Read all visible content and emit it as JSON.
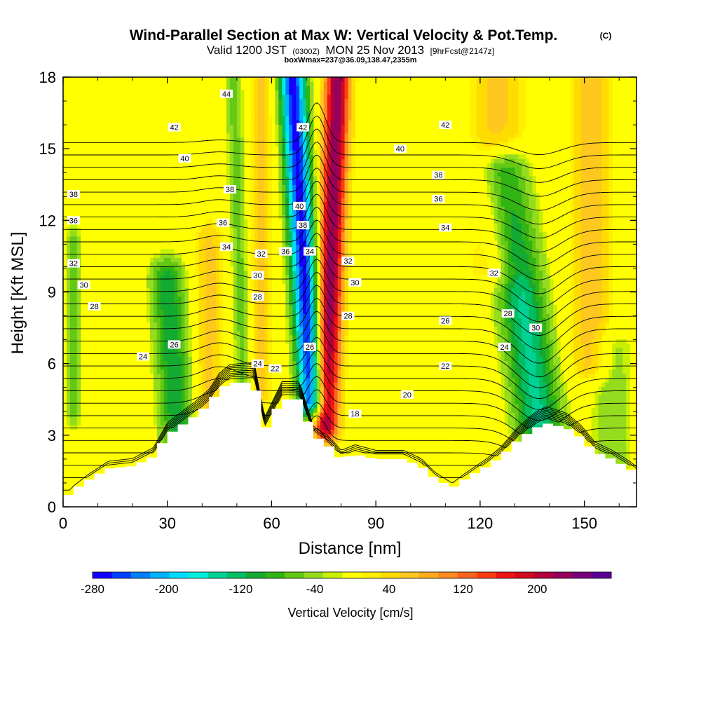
{
  "header": {
    "title": "Wind-Parallel Section at Max W: Vertical Velocity & Pot.Temp.",
    "copyright": "(C)",
    "valid_prefix": "Valid 1200 JST",
    "valid_utc": "(0300Z)",
    "valid_date": "MON 25 Nov 2013",
    "forecast": "[9hrFcst@2147z]",
    "box_info": "boxWmax=237@36.09,138.47,2355m"
  },
  "chart_data": {
    "type": "heatmap",
    "xlabel": "Distance [nm]",
    "ylabel": "Height [Kft MSL]",
    "xlim": [
      0,
      165
    ],
    "ylim": [
      0,
      18
    ],
    "x_ticks": [
      "0",
      "30",
      "60",
      "90",
      "120",
      "150"
    ],
    "y_ticks": [
      "0",
      "3",
      "6",
      "9",
      "12",
      "15",
      "18"
    ],
    "colorbar": {
      "label": "Vertical Velocity [cm/s]",
      "range": [
        -280,
        280
      ],
      "tick_values": [
        -280,
        -200,
        -120,
        -40,
        40,
        120,
        200
      ],
      "tick_labels": [
        "-280",
        "-200",
        "-120",
        "-40",
        "40",
        "120",
        "200"
      ],
      "colors": [
        "#1400ff",
        "#0040ff",
        "#0080ff",
        "#00b4ff",
        "#00dcff",
        "#00f0dc",
        "#00d296",
        "#00be64",
        "#14aa32",
        "#32b414",
        "#64c814",
        "#96dc1e",
        "#c8f000",
        "#ffff00",
        "#ffef00",
        "#ffdc00",
        "#ffc81e",
        "#ffaa1e",
        "#ff8c1e",
        "#ff641e",
        "#ff3c14",
        "#f01414",
        "#d20a1e",
        "#b4003c",
        "#96005a",
        "#78007d",
        "#5a0096"
      ]
    },
    "terrain_kft": [
      [
        0,
        0.3
      ],
      [
        3,
        0.7
      ],
      [
        7,
        1.1
      ],
      [
        13,
        1.6
      ],
      [
        20,
        1.7
      ],
      [
        26,
        2.1
      ],
      [
        30,
        3.0
      ],
      [
        33,
        3.3
      ],
      [
        38,
        3.8
      ],
      [
        42,
        4.3
      ],
      [
        45,
        4.9
      ],
      [
        48,
        5.2
      ],
      [
        55,
        5.2
      ],
      [
        58,
        3.2
      ],
      [
        63,
        4.5
      ],
      [
        68,
        4.5
      ],
      [
        72,
        3.0
      ],
      [
        76,
        2.6
      ],
      [
        80,
        2.0
      ],
      [
        84,
        2.2
      ],
      [
        90,
        2.0
      ],
      [
        98,
        2.0
      ],
      [
        103,
        1.7
      ],
      [
        107,
        1.2
      ],
      [
        112,
        0.8
      ],
      [
        115,
        1.1
      ],
      [
        122,
        1.7
      ],
      [
        126,
        2.1
      ],
      [
        131,
        2.8
      ],
      [
        136,
        3.3
      ],
      [
        139,
        3.5
      ],
      [
        145,
        3.3
      ],
      [
        149,
        2.9
      ],
      [
        153,
        2.3
      ],
      [
        158,
        2.0
      ],
      [
        163,
        1.6
      ],
      [
        165,
        1.4
      ]
    ],
    "velocity_features": [
      {
        "type": "downdraft",
        "x": 71.5,
        "y_range": [
          4.5,
          18
        ],
        "lean_nm": -5.5,
        "half_width_nm": 3.8,
        "peak_cm_s": -270
      },
      {
        "type": "updraft",
        "x": 75.5,
        "y_range": [
          3.5,
          18
        ],
        "lean_nm": 3.5,
        "half_width_nm": 3.6,
        "peak_cm_s": 237
      },
      {
        "type": "downdraft",
        "x": 137,
        "y_range": [
          3.5,
          14
        ],
        "lean_nm": -10,
        "half_width_nm": 7,
        "peak_cm_s": -140
      },
      {
        "type": "downdraft",
        "x": 33,
        "y_range": [
          3.0,
          9.5
        ],
        "lean_nm": -3,
        "half_width_nm": 5,
        "peak_cm_s": -110
      },
      {
        "type": "downdraft",
        "x": 52,
        "y_range": [
          4.5,
          18
        ],
        "lean_nm": -3,
        "half_width_nm": 2.5,
        "peak_cm_s": -60
      },
      {
        "type": "downdraft",
        "x": 3,
        "y_range": [
          4,
          11
        ],
        "lean_nm": 0,
        "half_width_nm": 2,
        "peak_cm_s": -60
      },
      {
        "type": "downdraft",
        "x": 158,
        "y_range": [
          2,
          6.5
        ],
        "lean_nm": 0,
        "half_width_nm": 6,
        "peak_cm_s": -50
      },
      {
        "type": "updraft",
        "x": 42,
        "y_range": [
          4,
          11
        ],
        "lean_nm": 0,
        "half_width_nm": 4,
        "peak_cm_s": 60
      },
      {
        "type": "updraft",
        "x": 57,
        "y_range": [
          5,
          18
        ],
        "lean_nm": 0,
        "half_width_nm": 3,
        "peak_cm_s": 60
      },
      {
        "type": "updraft",
        "x": 152,
        "y_range": [
          6,
          18
        ],
        "lean_nm": 0,
        "half_width_nm": 6,
        "peak_cm_s": 70
      },
      {
        "type": "updraft",
        "x": 125,
        "y_range": [
          10,
          18
        ],
        "lean_nm": 0,
        "half_width_nm": 8,
        "peak_cm_s": 60
      }
    ],
    "potential_temperature_labels": [
      {
        "text": "44",
        "x": 47,
        "y": 17.3
      },
      {
        "text": "42",
        "x": 32,
        "y": 15.9
      },
      {
        "text": "40",
        "x": 35,
        "y": 14.6
      },
      {
        "text": "38",
        "x": 3,
        "y": 13.1
      },
      {
        "text": "36",
        "x": 3,
        "y": 12.0
      },
      {
        "text": "32",
        "x": 3,
        "y": 10.2
      },
      {
        "text": "30",
        "x": 6,
        "y": 9.3
      },
      {
        "text": "28",
        "x": 9,
        "y": 8.4
      },
      {
        "text": "38",
        "x": 48,
        "y": 13.3
      },
      {
        "text": "36",
        "x": 46,
        "y": 11.9
      },
      {
        "text": "34",
        "x": 47,
        "y": 10.9
      },
      {
        "text": "32",
        "x": 57,
        "y": 10.6
      },
      {
        "text": "30",
        "x": 56,
        "y": 9.7
      },
      {
        "text": "28",
        "x": 56,
        "y": 8.8
      },
      {
        "text": "26",
        "x": 32,
        "y": 6.8
      },
      {
        "text": "24",
        "x": 23,
        "y": 6.3
      },
      {
        "text": "24",
        "x": 56,
        "y": 6.0
      },
      {
        "text": "22",
        "x": 61,
        "y": 5.8
      },
      {
        "text": "42",
        "x": 69,
        "y": 15.9
      },
      {
        "text": "40",
        "x": 68,
        "y": 12.6
      },
      {
        "text": "38",
        "x": 69,
        "y": 11.8
      },
      {
        "text": "36",
        "x": 64,
        "y": 10.7
      },
      {
        "text": "34",
        "x": 71,
        "y": 10.7
      },
      {
        "text": "26",
        "x": 71,
        "y": 6.7
      },
      {
        "text": "32",
        "x": 82,
        "y": 10.3
      },
      {
        "text": "30",
        "x": 84,
        "y": 9.4
      },
      {
        "text": "28",
        "x": 82,
        "y": 8.0
      },
      {
        "text": "18",
        "x": 84,
        "y": 3.9
      },
      {
        "text": "20",
        "x": 99,
        "y": 4.7
      },
      {
        "text": "22",
        "x": 110,
        "y": 5.9
      },
      {
        "text": "26",
        "x": 110,
        "y": 7.8
      },
      {
        "text": "40",
        "x": 97,
        "y": 15.0
      },
      {
        "text": "42",
        "x": 110,
        "y": 16.0
      },
      {
        "text": "38",
        "x": 108,
        "y": 13.9
      },
      {
        "text": "36",
        "x": 108,
        "y": 12.9
      },
      {
        "text": "34",
        "x": 110,
        "y": 11.7
      },
      {
        "text": "32",
        "x": 124,
        "y": 9.8
      },
      {
        "text": "28",
        "x": 128,
        "y": 8.1
      },
      {
        "text": "24",
        "x": 127,
        "y": 6.7
      },
      {
        "text": "30",
        "x": 136,
        "y": 7.5
      }
    ]
  }
}
